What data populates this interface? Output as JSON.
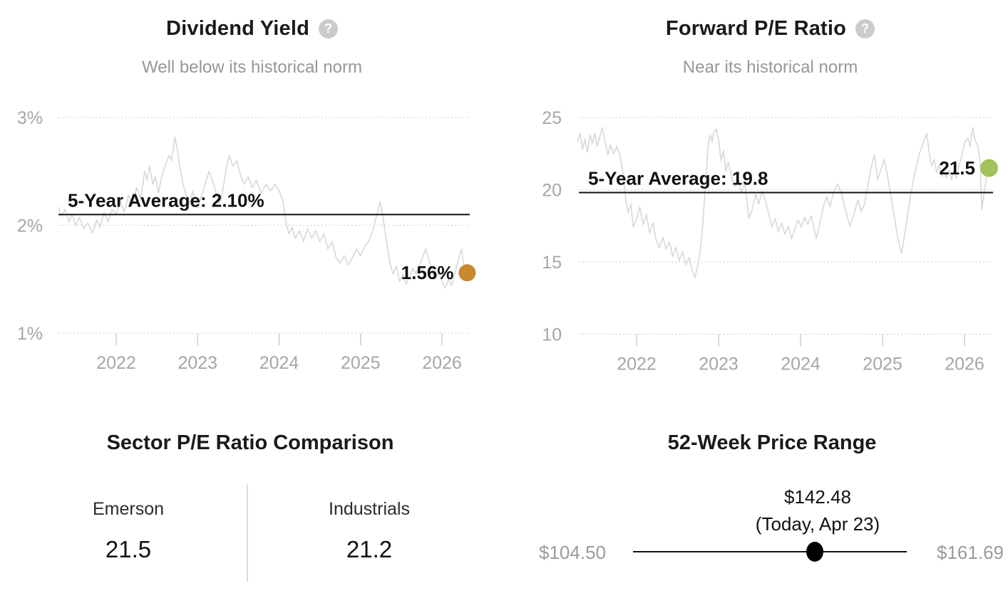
{
  "icons": {
    "help": "?"
  },
  "chart_data": [
    {
      "id": "dividend_yield",
      "type": "line",
      "title": "Dividend Yield",
      "subtitle": "Well below its historical norm",
      "series_name": "Dividend Yield (%)",
      "line_color": "#d8d8d8",
      "grid": "dotted",
      "legend_position": "none",
      "xlim": [
        2021.28,
        2026.36
      ],
      "ylim": [
        0.9,
        3.17
      ],
      "x_ticks": {
        "values": [
          2022,
          2023,
          2024,
          2025,
          2026
        ],
        "labels": [
          "2022",
          "2023",
          "2024",
          "2025",
          "2026"
        ]
      },
      "y_ticks": {
        "values": [
          1,
          2,
          3
        ],
        "labels": [
          "1%",
          "2%",
          "3%"
        ]
      },
      "average": {
        "value": 2.1,
        "label": "5-Year Average: 2.10%"
      },
      "current": {
        "value": 1.56,
        "label": "1.56%",
        "dot_color": "#c8882c"
      },
      "x": [
        2021.29,
        2021.33,
        2021.37,
        2021.42,
        2021.46,
        2021.5,
        2021.55,
        2021.6,
        2021.65,
        2021.71,
        2021.76,
        2021.8,
        2021.85,
        2021.9,
        2021.95,
        2022.0,
        2022.05,
        2022.1,
        2022.15,
        2022.2,
        2022.25,
        2022.3,
        2022.35,
        2022.38,
        2022.41,
        2022.45,
        2022.48,
        2022.52,
        2022.55,
        2022.6,
        2022.65,
        2022.68,
        2022.72,
        2022.75,
        2022.78,
        2022.82,
        2022.86,
        2022.9,
        2022.94,
        2023.0,
        2023.05,
        2023.1,
        2023.14,
        2023.18,
        2023.22,
        2023.26,
        2023.3,
        2023.35,
        2023.39,
        2023.43,
        2023.48,
        2023.52,
        2023.57,
        2023.62,
        2023.67,
        2023.72,
        2023.78,
        2023.84,
        2023.9,
        2023.95,
        2024.0,
        2024.05,
        2024.08,
        2024.12,
        2024.16,
        2024.2,
        2024.25,
        2024.3,
        2024.35,
        2024.4,
        2024.45,
        2024.5,
        2024.55,
        2024.6,
        2024.65,
        2024.7,
        2024.75,
        2024.8,
        2024.85,
        2024.9,
        2024.95,
        2025.0,
        2025.05,
        2025.1,
        2025.15,
        2025.2,
        2025.24,
        2025.28,
        2025.32,
        2025.36,
        2025.4,
        2025.44,
        2025.48,
        2025.52,
        2025.56,
        2025.6,
        2025.64,
        2025.68,
        2025.72,
        2025.76,
        2025.8,
        2025.84,
        2025.88,
        2025.92,
        2025.96,
        2026.0,
        2026.04,
        2026.08,
        2026.12,
        2026.16,
        2026.2,
        2026.24,
        2026.27,
        2026.31
      ],
      "values": [
        2.17,
        2.08,
        2.15,
        2.03,
        2.1,
        2.0,
        2.07,
        1.97,
        2.02,
        1.93,
        2.05,
        1.98,
        2.12,
        2.03,
        2.15,
        2.1,
        2.22,
        2.12,
        2.28,
        2.18,
        2.35,
        2.25,
        2.5,
        2.42,
        2.55,
        2.38,
        2.45,
        2.3,
        2.42,
        2.55,
        2.65,
        2.6,
        2.82,
        2.7,
        2.55,
        2.38,
        2.28,
        2.2,
        2.32,
        2.16,
        2.28,
        2.4,
        2.5,
        2.42,
        2.32,
        2.2,
        2.28,
        2.52,
        2.65,
        2.55,
        2.6,
        2.48,
        2.38,
        2.45,
        2.35,
        2.42,
        2.3,
        2.38,
        2.32,
        2.38,
        2.32,
        2.22,
        2.05,
        1.92,
        1.98,
        1.88,
        1.95,
        1.85,
        1.97,
        1.88,
        1.95,
        1.85,
        1.92,
        1.78,
        1.85,
        1.7,
        1.65,
        1.72,
        1.63,
        1.7,
        1.78,
        1.72,
        1.8,
        1.85,
        1.95,
        2.1,
        2.22,
        2.05,
        1.85,
        1.65,
        1.55,
        1.62,
        1.48,
        1.55,
        1.45,
        1.52,
        1.6,
        1.55,
        1.62,
        1.7,
        1.78,
        1.68,
        1.58,
        1.5,
        1.56,
        1.48,
        1.42,
        1.5,
        1.44,
        1.56,
        1.68,
        1.78,
        1.62,
        1.56
      ]
    },
    {
      "id": "forward_pe",
      "type": "line",
      "title": "Forward P/E Ratio",
      "subtitle": "Near its historical norm",
      "series_name": "Forward P/E",
      "line_color": "#d8d8d8",
      "grid": "dotted",
      "legend_position": "none",
      "xlim": [
        2021.27,
        2026.36
      ],
      "ylim": [
        9.8,
        25.3
      ],
      "x_ticks": {
        "values": [
          2022,
          2023,
          2024,
          2025,
          2026
        ],
        "labels": [
          "2022",
          "2023",
          "2024",
          "2025",
          "2026"
        ]
      },
      "y_ticks": {
        "values": [
          10,
          15,
          20,
          25
        ],
        "labels": [
          "10",
          "15",
          "20",
          "25"
        ]
      },
      "average": {
        "value": 19.8,
        "label": "5-Year Average: 19.8"
      },
      "current": {
        "value": 21.5,
        "label": "21.5",
        "dot_color": "#a3c15c"
      },
      "x": [
        2021.28,
        2021.31,
        2021.34,
        2021.37,
        2021.4,
        2021.43,
        2021.46,
        2021.49,
        2021.52,
        2021.55,
        2021.58,
        2021.62,
        2021.65,
        2021.68,
        2021.72,
        2021.76,
        2021.8,
        2021.84,
        2021.87,
        2021.9,
        2021.93,
        2021.96,
        2022.0,
        2022.04,
        2022.08,
        2022.12,
        2022.16,
        2022.2,
        2022.24,
        2022.28,
        2022.32,
        2022.36,
        2022.4,
        2022.44,
        2022.48,
        2022.52,
        2022.56,
        2022.6,
        2022.64,
        2022.68,
        2022.71,
        2022.74,
        2022.77,
        2022.8,
        2022.83,
        2022.86,
        2022.88,
        2022.9,
        2022.92,
        2022.94,
        2022.97,
        2023.0,
        2023.03,
        2023.06,
        2023.09,
        2023.12,
        2023.16,
        2023.2,
        2023.24,
        2023.28,
        2023.32,
        2023.37,
        2023.41,
        2023.45,
        2023.49,
        2023.53,
        2023.57,
        2023.61,
        2023.65,
        2023.69,
        2023.73,
        2023.77,
        2023.81,
        2023.85,
        2023.89,
        2023.93,
        2023.97,
        2024.01,
        2024.05,
        2024.09,
        2024.13,
        2024.19,
        2024.24,
        2024.28,
        2024.32,
        2024.36,
        2024.4,
        2024.45,
        2024.5,
        2024.55,
        2024.6,
        2024.65,
        2024.7,
        2024.74,
        2024.78,
        2024.82,
        2024.86,
        2024.9,
        2024.94,
        2024.98,
        2025.02,
        2025.06,
        2025.1,
        2025.14,
        2025.18,
        2025.23,
        2025.27,
        2025.31,
        2025.35,
        2025.4,
        2025.45,
        2025.5,
        2025.54,
        2025.57,
        2025.6,
        2025.63,
        2025.66,
        2025.69,
        2025.72,
        2025.75,
        2025.78,
        2025.81,
        2025.84,
        2025.87,
        2025.9,
        2025.93,
        2025.96,
        2026.0,
        2026.04,
        2026.07,
        2026.1,
        2026.13,
        2026.16,
        2026.19,
        2026.21,
        2026.24,
        2026.27,
        2026.3
      ],
      "values": [
        23.3,
        23.9,
        22.8,
        23.5,
        22.6,
        23.8,
        23.2,
        23.9,
        23.0,
        23.6,
        24.3,
        23.2,
        22.4,
        23.1,
        22.5,
        23.0,
        22.3,
        21.0,
        19.2,
        18.4,
        19.0,
        17.4,
        18.0,
        18.8,
        17.6,
        18.3,
        17.0,
        17.7,
        16.5,
        16.0,
        16.7,
        15.9,
        16.4,
        15.4,
        16.0,
        15.1,
        15.7,
        14.8,
        15.3,
        14.4,
        13.9,
        14.6,
        15.5,
        17.0,
        19.5,
        22.0,
        23.4,
        23.8,
        23.3,
        23.9,
        24.2,
        23.5,
        22.0,
        22.7,
        21.3,
        21.9,
        20.8,
        20.2,
        20.8,
        19.8,
        20.5,
        18.0,
        18.6,
        19.7,
        19.0,
        19.9,
        19.3,
        18.4,
        17.4,
        18.0,
        17.1,
        17.7,
        16.9,
        17.5,
        16.6,
        17.3,
        17.9,
        17.4,
        18.1,
        17.6,
        18.2,
        16.6,
        17.8,
        18.9,
        19.5,
        18.8,
        19.8,
        20.4,
        19.7,
        18.6,
        17.5,
        18.3,
        19.3,
        18.5,
        19.0,
        20.3,
        21.5,
        22.4,
        20.7,
        21.4,
        22.1,
        21.0,
        19.6,
        18.3,
        16.8,
        15.6,
        16.8,
        18.4,
        19.9,
        21.3,
        22.5,
        23.3,
        23.9,
        22.6,
        21.6,
        22.1,
        21.2,
        21.7,
        20.9,
        21.5,
        20.8,
        21.4,
        20.7,
        21.3,
        20.8,
        21.6,
        22.2,
        23.2,
        23.6,
        23.0,
        24.3,
        23.4,
        23.1,
        22.0,
        18.6,
        19.8,
        21.0,
        21.5
      ]
    }
  ],
  "sector_comparison": {
    "title": "Sector P/E Ratio Comparison",
    "columns": [
      {
        "name": "Emerson",
        "value": "21.5"
      },
      {
        "name": "Industrials",
        "value": "21.2"
      }
    ]
  },
  "price_range": {
    "title": "52-Week Price Range",
    "current_label": "$142.48",
    "current_sub": "(Today, Apr 23)",
    "low_label": "$104.50",
    "high_label": "$161.69",
    "low_value": 104.5,
    "high_value": 161.69,
    "current_value": 142.48
  }
}
